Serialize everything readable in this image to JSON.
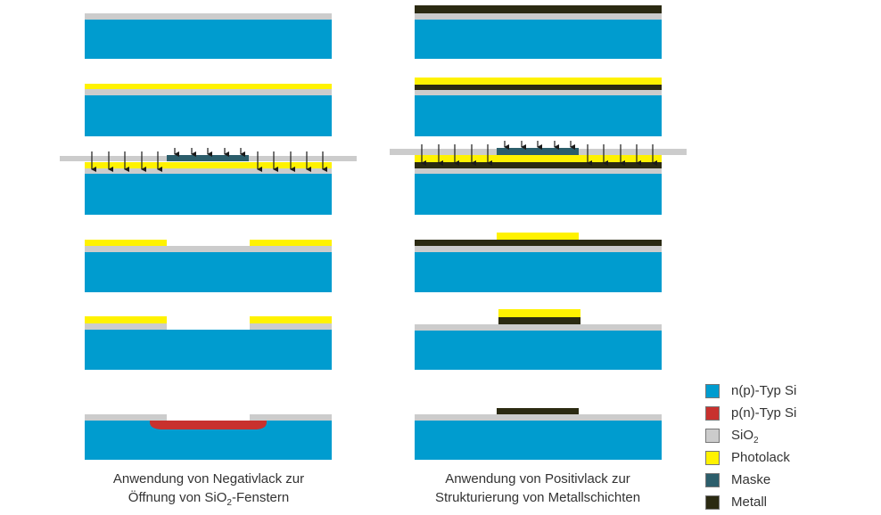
{
  "colors": {
    "n_si": "#009ccf",
    "p_si": "#c8312e",
    "sio2": "#cccccc",
    "photolack": "#fff200",
    "maske": "#2c5e6b",
    "metall": "#2b2a12",
    "arrow": "#1a1a1a"
  },
  "captions": {
    "negativ": {
      "line1": "Anwendung von Negativlack zur",
      "line2_pre": "Öffnung von SiO",
      "line2_sub": "2",
      "line2_post": "-Fenstern"
    },
    "positiv": {
      "line1": "Anwendung von Positivlack zur",
      "line2": "Strukturierung von Metallschichten"
    }
  },
  "legend": [
    {
      "key": "n_si",
      "label": "n(p)-Typ Si",
      "icon": "swatch"
    },
    {
      "key": "p_si",
      "label": "p(n)-Typ Si",
      "icon": "swatch"
    },
    {
      "key": "sio2",
      "label": "SiO",
      "sub": "2",
      "icon": "swatch"
    },
    {
      "key": "photolack",
      "label": "Photolack",
      "icon": "swatch"
    },
    {
      "key": "maske",
      "label": "Maske",
      "icon": "swatch"
    },
    {
      "key": "metall",
      "label": "Metall",
      "icon": "swatch"
    }
  ]
}
